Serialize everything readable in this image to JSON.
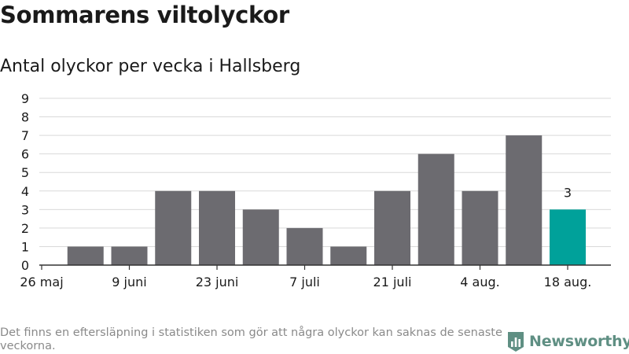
{
  "title": "Sommarens viltolyckor",
  "subtitle": "Antal olyckor per vecka i Hallsberg",
  "footnote": "Det finns en eftersläpning i statistiken som gör att några olyckor kan saknas de senaste veckorna.",
  "brand": {
    "name": "Newsworthy",
    "icon": "newsworthy-logo-icon"
  },
  "colors": {
    "bar": "#6c6b70",
    "highlight": "#00a19a",
    "grid": "#d9d9d9",
    "axis": "#333333",
    "brand": "#5f8f83"
  },
  "chart_data": {
    "type": "bar",
    "categories": [
      "26 maj",
      "2 juni",
      "9 juni",
      "16 juni",
      "23 juni",
      "30 juni",
      "7 juli",
      "14 juli",
      "21 juli",
      "28 juli",
      "4 aug.",
      "11 aug.",
      "18 aug."
    ],
    "x_tick_labels": [
      "26 maj",
      "9 juni",
      "23 juni",
      "7 juli",
      "21 juli",
      "4 aug.",
      "18 aug."
    ],
    "values": [
      0,
      1,
      1,
      4,
      4,
      3,
      2,
      1,
      4,
      6,
      4,
      7,
      3
    ],
    "highlight_index": 12,
    "data_labels": [
      {
        "index": 12,
        "text": "3"
      }
    ],
    "ylim": [
      0,
      9
    ],
    "y_ticks": [
      0,
      1,
      2,
      3,
      4,
      5,
      6,
      7,
      8,
      9
    ],
    "grid": true,
    "xlabel": "",
    "ylabel": ""
  }
}
